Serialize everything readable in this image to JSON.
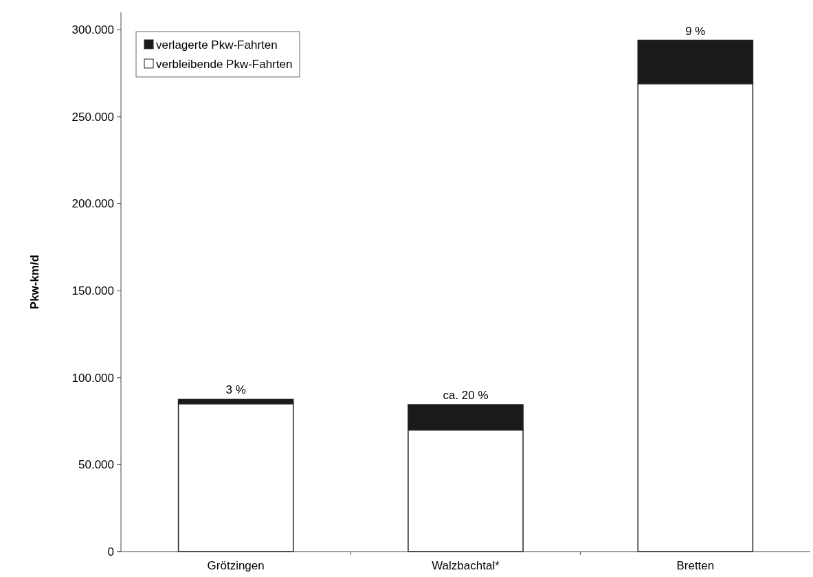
{
  "chart_data": {
    "type": "bar",
    "ylabel": "Pkw-km/d",
    "categories": [
      "Grötzingen",
      "Walzbachtal*",
      "Bretten"
    ],
    "stacked": true,
    "series": [
      {
        "name": "verbleibende Pkw-Fahrten",
        "color": "#ffffff",
        "values": [
          85000,
          70000,
          269000
        ]
      },
      {
        "name": "verlagerte Pkw-Fahrten",
        "color": "#1a1a1a",
        "values": [
          2500,
          14500,
          25000
        ]
      }
    ],
    "annotations": [
      {
        "text": "3 %",
        "x": "Grötzingen",
        "y": 87500
      },
      {
        "text": "ca. 20 %",
        "x": "Walzbachtal*",
        "y": 84500
      },
      {
        "text": "9 %",
        "x": "Bretten",
        "y": 294000
      }
    ],
    "ylim": [
      0,
      310000
    ],
    "yticks": [
      0,
      {
        "value": 50000,
        "label": "50.000"
      },
      {
        "value": 100000,
        "label": "100.000"
      },
      {
        "value": 150000,
        "label": "150.000"
      },
      {
        "value": 200000,
        "label": "200.000"
      },
      {
        "value": 250000,
        "label": "250.000"
      },
      {
        "value": 300000,
        "label": "300.000"
      }
    ],
    "legend": "top left",
    "grid": false
  }
}
